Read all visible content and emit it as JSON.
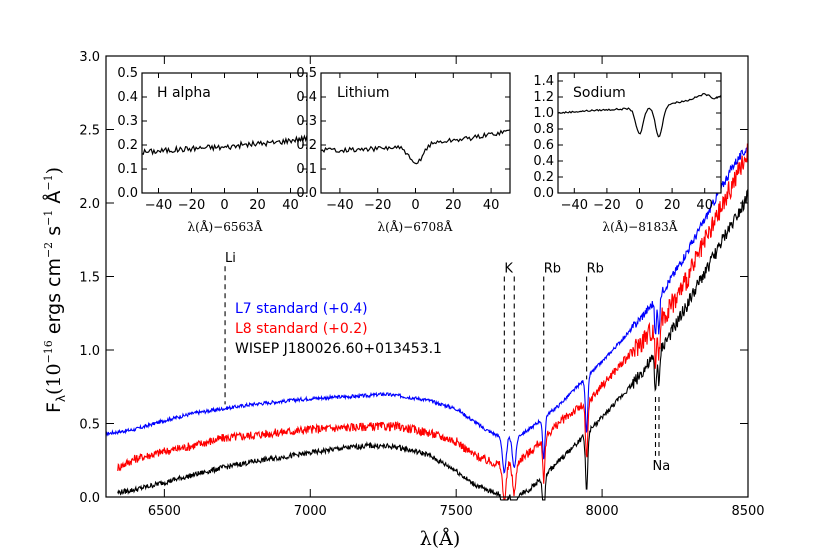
{
  "chart_data": {
    "type": "line",
    "main": {
      "xlabel": "λ(Å)",
      "ylabel": "F",
      "ylabel_sub": "λ",
      "ylabel_units": "(10",
      "ylabel_exp1": "−16",
      "ylabel_mid": " ergs  cm",
      "ylabel_exp2": "−2",
      "ylabel_s": "s",
      "ylabel_exp3": "−1",
      "ylabel_A": " Å",
      "ylabel_exp4": "−1",
      "ylabel_close": ")",
      "xlim": [
        6300,
        8500
      ],
      "ylim": [
        0.0,
        3.0
      ],
      "xticks": [
        6500,
        7000,
        7500,
        8000,
        8500
      ],
      "yticks": [
        0.0,
        0.5,
        1.0,
        1.5,
        2.0,
        2.5,
        3.0
      ],
      "xtick_labels": [
        "6500",
        "7000",
        "7500",
        "8000",
        "8500"
      ],
      "ytick_labels": [
        "0.0",
        "0.5",
        "1.0",
        "1.5",
        "2.0",
        "2.5",
        "3.0"
      ],
      "legend": [
        {
          "label": "L7 standard (+0.4)",
          "color": "#0000ff"
        },
        {
          "label": "L8 standard (+0.2)",
          "color": "#ff0000"
        },
        {
          "label": "WISEP J180026.60+013453.1",
          "color": "#000000"
        }
      ],
      "series": [
        {
          "name": "L7 standard (+0.4)",
          "color": "#0000ff",
          "noise": 0.012,
          "points": [
            [
              6300,
              0.43
            ],
            [
              6400,
              0.46
            ],
            [
              6500,
              0.52
            ],
            [
              6600,
              0.57
            ],
            [
              6700,
              0.6
            ],
            [
              6800,
              0.63
            ],
            [
              6900,
              0.65
            ],
            [
              7000,
              0.67
            ],
            [
              7100,
              0.68
            ],
            [
              7200,
              0.69
            ],
            [
              7250,
              0.7
            ],
            [
              7300,
              0.69
            ],
            [
              7400,
              0.66
            ],
            [
              7500,
              0.6
            ],
            [
              7550,
              0.53
            ],
            [
              7600,
              0.46
            ],
            [
              7650,
              0.41
            ],
            [
              7700,
              0.4
            ],
            [
              7750,
              0.46
            ],
            [
              7800,
              0.54
            ],
            [
              7850,
              0.62
            ],
            [
              7900,
              0.72
            ],
            [
              7950,
              0.82
            ],
            [
              8000,
              0.92
            ],
            [
              8050,
              1.03
            ],
            [
              8100,
              1.14
            ],
            [
              8150,
              1.26
            ],
            [
              8200,
              1.38
            ],
            [
              8250,
              1.53
            ],
            [
              8300,
              1.7
            ],
            [
              8350,
              1.88
            ],
            [
              8400,
              2.07
            ],
            [
              8450,
              2.26
            ],
            [
              8500,
              2.38
            ]
          ]
        },
        {
          "name": "L8 standard (+0.2)",
          "color": "#ff0000",
          "noise": 0.03,
          "points": [
            [
              6340,
              0.2
            ],
            [
              6400,
              0.26
            ],
            [
              6500,
              0.31
            ],
            [
              6600,
              0.35
            ],
            [
              6700,
              0.4
            ],
            [
              6800,
              0.42
            ],
            [
              6900,
              0.44
            ],
            [
              7000,
              0.46
            ],
            [
              7100,
              0.47
            ],
            [
              7200,
              0.48
            ],
            [
              7300,
              0.48
            ],
            [
              7400,
              0.44
            ],
            [
              7500,
              0.38
            ],
            [
              7550,
              0.3
            ],
            [
              7600,
              0.25
            ],
            [
              7650,
              0.22
            ],
            [
              7700,
              0.23
            ],
            [
              7750,
              0.3
            ],
            [
              7800,
              0.4
            ],
            [
              7850,
              0.5
            ],
            [
              7900,
              0.58
            ],
            [
              7950,
              0.64
            ],
            [
              8000,
              0.76
            ],
            [
              8050,
              0.87
            ],
            [
              8100,
              0.98
            ],
            [
              8150,
              1.09
            ],
            [
              8200,
              1.2
            ],
            [
              8250,
              1.34
            ],
            [
              8300,
              1.52
            ],
            [
              8350,
              1.72
            ],
            [
              8400,
              1.93
            ],
            [
              8450,
              2.14
            ],
            [
              8500,
              2.35
            ]
          ]
        },
        {
          "name": "WISEP J180026.60+013453.1",
          "color": "#000000",
          "noise": 0.018,
          "points": [
            [
              6340,
              0.03
            ],
            [
              6400,
              0.05
            ],
            [
              6500,
              0.1
            ],
            [
              6600,
              0.15
            ],
            [
              6700,
              0.2
            ],
            [
              6800,
              0.24
            ],
            [
              6900,
              0.27
            ],
            [
              7000,
              0.3
            ],
            [
              7100,
              0.33
            ],
            [
              7200,
              0.35
            ],
            [
              7300,
              0.34
            ],
            [
              7400,
              0.29
            ],
            [
              7500,
              0.18
            ],
            [
              7550,
              0.1
            ],
            [
              7600,
              0.05
            ],
            [
              7650,
              0.02
            ],
            [
              7700,
              0.01
            ],
            [
              7750,
              0.05
            ],
            [
              7800,
              0.14
            ],
            [
              7850,
              0.24
            ],
            [
              7900,
              0.34
            ],
            [
              7950,
              0.44
            ],
            [
              8000,
              0.54
            ],
            [
              8050,
              0.65
            ],
            [
              8100,
              0.76
            ],
            [
              8150,
              0.88
            ],
            [
              8200,
              1.0
            ],
            [
              8250,
              1.16
            ],
            [
              8300,
              1.34
            ],
            [
              8350,
              1.52
            ],
            [
              8400,
              1.7
            ],
            [
              8450,
              1.88
            ],
            [
              8500,
              2.05
            ]
          ]
        }
      ],
      "absorption_features": [
        {
          "center": 7665,
          "width": 6,
          "depth": 0.25
        },
        {
          "center": 7699,
          "width": 6,
          "depth": 0.2
        },
        {
          "center": 7800,
          "width": 4,
          "depth": 0.28
        },
        {
          "center": 7947,
          "width": 4,
          "depth": 0.38
        },
        {
          "center": 8183,
          "width": 3,
          "depth": 0.25
        },
        {
          "center": 8195,
          "width": 3,
          "depth": 0.25
        }
      ],
      "line_markers": [
        {
          "label": "Li",
          "x": 6708,
          "y_top": 1.57,
          "y_bottom": 0.63,
          "label_pos": "top"
        },
        {
          "label": "K",
          "x": 7665,
          "y_top": 1.5,
          "y_bottom": 0.45,
          "label_pos": "top"
        },
        {
          "label": "",
          "x": 7699,
          "y_top": 1.5,
          "y_bottom": 0.45,
          "label_pos": "none"
        },
        {
          "label": "Rb",
          "x": 7800,
          "y_top": 1.5,
          "y_bottom": 0.6,
          "label_pos": "top"
        },
        {
          "label": "Rb",
          "x": 7947,
          "y_top": 1.5,
          "y_bottom": 0.8,
          "label_pos": "top"
        },
        {
          "label": "Na",
          "x": 8183,
          "y_top": 0.68,
          "y_bottom": 0.28,
          "label_pos": "bottom"
        },
        {
          "label": "",
          "x": 8195,
          "y_top": 0.68,
          "y_bottom": 0.28,
          "label_pos": "none"
        }
      ]
    },
    "insets": [
      {
        "title": "H alpha",
        "xlabel": "λ(Å)−6563Å",
        "xlim": [
          -50,
          50
        ],
        "ylim": [
          0.0,
          0.5
        ],
        "xticks": [
          -40,
          -20,
          0,
          20,
          40
        ],
        "xtick_labels": [
          "−40",
          "−20",
          "0",
          "20",
          "40"
        ],
        "yticks": [
          0.0,
          0.1,
          0.2,
          0.3,
          0.4,
          0.5
        ],
        "ytick_labels": [
          "0.0",
          "0.1",
          "0.2",
          "0.3",
          "0.4",
          "0.5"
        ],
        "noise": 0.012,
        "points": [
          [
            -50,
            0.17
          ],
          [
            -30,
            0.18
          ],
          [
            -10,
            0.19
          ],
          [
            0,
            0.19
          ],
          [
            10,
            0.2
          ],
          [
            30,
            0.21
          ],
          [
            50,
            0.23
          ]
        ],
        "dips": []
      },
      {
        "title": "Lithium",
        "xlabel": "λ(Å)−6708Å",
        "xlim": [
          -50,
          50
        ],
        "ylim": [
          0.0,
          0.5
        ],
        "xticks": [
          -40,
          -20,
          0,
          20,
          40
        ],
        "xtick_labels": [
          "−40",
          "−20",
          "0",
          "20",
          "40"
        ],
        "yticks": [
          0.0,
          0.1,
          0.2,
          0.3,
          0.4,
          0.5
        ],
        "ytick_labels": [
          "0.0",
          "0.1",
          "0.2",
          "0.3",
          "0.4",
          "0.5"
        ],
        "noise": 0.01,
        "points": [
          [
            -50,
            0.18
          ],
          [
            -30,
            0.18
          ],
          [
            -10,
            0.19
          ],
          [
            10,
            0.21
          ],
          [
            30,
            0.23
          ],
          [
            50,
            0.26
          ]
        ],
        "dips": [
          {
            "center": 0,
            "width": 3.5,
            "depth": 0.08
          }
        ]
      },
      {
        "title": "Sodium",
        "xlabel": "λ(Å)−8183Å",
        "xlim": [
          -50,
          50
        ],
        "ylim": [
          0.0,
          1.5
        ],
        "xticks": [
          -40,
          -20,
          0,
          20,
          40
        ],
        "xtick_labels": [
          "−40",
          "−20",
          "0",
          "20",
          "40"
        ],
        "yticks": [
          0.0,
          0.2,
          0.4,
          0.6,
          0.8,
          1.0,
          1.2,
          1.4
        ],
        "ytick_labels": [
          "0.0",
          "0.2",
          "0.4",
          "0.6",
          "0.8",
          "1.0",
          "1.2",
          "1.4"
        ],
        "noise": 0.01,
        "points": [
          [
            -50,
            1.0
          ],
          [
            -30,
            1.03
          ],
          [
            -10,
            1.05
          ],
          [
            10,
            1.08
          ],
          [
            30,
            1.16
          ],
          [
            40,
            1.24
          ],
          [
            46,
            1.18
          ],
          [
            50,
            1.22
          ]
        ],
        "dips": [
          {
            "center": 0,
            "width": 2.2,
            "depth": 0.33
          },
          {
            "center": 12,
            "width": 2.2,
            "depth": 0.38
          }
        ]
      }
    ]
  }
}
